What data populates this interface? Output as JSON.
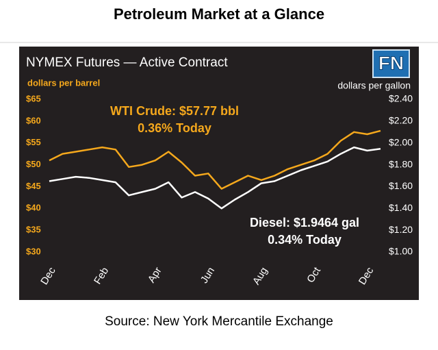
{
  "title": "Petroleum Market at a Glance",
  "source": "Source: New York Mercantile Exchange",
  "chart_data": {
    "type": "line",
    "title": "NYMEX Futures — Active Contract",
    "logo": "FN",
    "ylabel": "dollars per barrel",
    "y2label": "dollars per gallon",
    "categories": [
      "Dec",
      null,
      null,
      null,
      "Feb",
      null,
      null,
      null,
      "Apr",
      null,
      null,
      null,
      "Jun",
      null,
      null,
      null,
      "Aug",
      null,
      null,
      null,
      "Oct",
      null,
      null,
      null,
      "Dec",
      null
    ],
    "series": [
      {
        "name": "WTI Crude",
        "color": "#f5a81c",
        "axis": "y",
        "values": [
          51,
          52.5,
          53,
          53.5,
          54,
          53.5,
          49.5,
          50,
          51,
          53,
          50.5,
          47.5,
          48,
          44.5,
          46,
          47.5,
          46.5,
          47.5,
          49,
          50,
          51,
          52.5,
          55.5,
          57.5,
          57,
          57.8
        ]
      },
      {
        "name": "Diesel",
        "color": "#ffffff",
        "axis": "y2",
        "values": [
          1.65,
          1.67,
          1.69,
          1.68,
          1.66,
          1.64,
          1.52,
          1.55,
          1.58,
          1.64,
          1.5,
          1.55,
          1.49,
          1.4,
          1.48,
          1.55,
          1.63,
          1.65,
          1.7,
          1.75,
          1.79,
          1.83,
          1.9,
          1.96,
          1.93,
          1.9464
        ]
      }
    ],
    "annotations": [
      {
        "lines": [
          "WTI Crude: $57.77 bbl",
          "0.36% Today"
        ],
        "color": "#f5a81c"
      },
      {
        "lines": [
          "Diesel: $1.9464 gal",
          "0.34% Today"
        ],
        "color": "#ffffff"
      }
    ],
    "ylim": [
      30,
      65
    ],
    "yticks": [
      {
        "value": 30,
        "label": "$30"
      },
      {
        "value": 35,
        "label": "$35"
      },
      {
        "value": 40,
        "label": "$40"
      },
      {
        "value": 45,
        "label": "$45"
      },
      {
        "value": 50,
        "label": "$50"
      },
      {
        "value": 55,
        "label": "$55"
      },
      {
        "value": 60,
        "label": "$60"
      },
      {
        "value": 65,
        "label": "$65"
      }
    ],
    "y2lim": [
      1.0,
      2.4
    ],
    "y2ticks": [
      {
        "value": 1.0,
        "label": "$1.00"
      },
      {
        "value": 1.2,
        "label": "$1.20"
      },
      {
        "value": 1.4,
        "label": "$1.40"
      },
      {
        "value": 1.6,
        "label": "$1.60"
      },
      {
        "value": 1.8,
        "label": "$1.80"
      },
      {
        "value": 2.0,
        "label": "$2.00"
      },
      {
        "value": 2.2,
        "label": "$2.20"
      },
      {
        "value": 2.4,
        "label": "$2.40"
      }
    ],
    "grid": false
  }
}
